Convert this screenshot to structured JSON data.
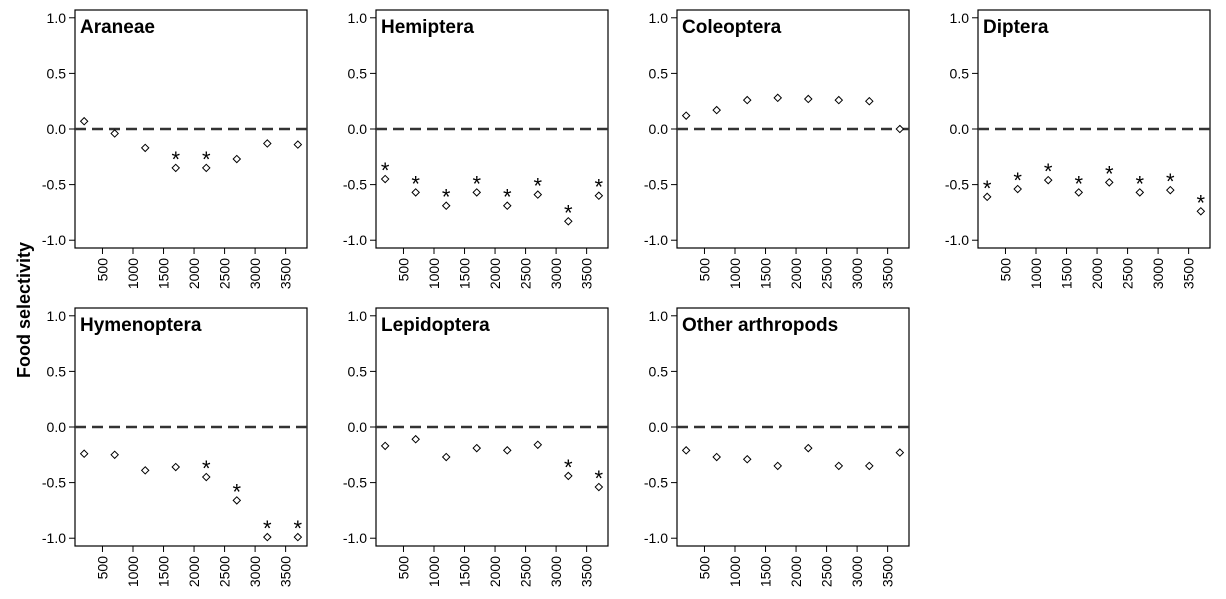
{
  "ylabel": "Food selectivity",
  "chart_data": [
    {
      "type": "scatter",
      "title": "Araneae",
      "x": [
        200,
        700,
        1200,
        1700,
        2200,
        2700,
        3200,
        3700
      ],
      "y": [
        0.07,
        -0.04,
        -0.17,
        -0.35,
        -0.35,
        -0.27,
        -0.13,
        -0.14
      ],
      "significant": [
        false,
        false,
        false,
        true,
        true,
        false,
        false,
        false
      ],
      "ylim": [
        -1.07,
        1.07
      ],
      "xlim": [
        50,
        3850
      ],
      "yticks": [
        "-1.0",
        "-0.5",
        "0.0",
        "0.5",
        "1.0"
      ],
      "xticks": [
        "500",
        "1000",
        "1500",
        "2000",
        "2500",
        "3000",
        "3500"
      ],
      "reference_line": 0
    },
    {
      "type": "scatter",
      "title": "Hemiptera",
      "x": [
        200,
        700,
        1200,
        1700,
        2200,
        2700,
        3200,
        3700
      ],
      "y": [
        -0.45,
        -0.57,
        -0.69,
        -0.57,
        -0.69,
        -0.59,
        -0.83,
        -0.6
      ],
      "significant": [
        true,
        true,
        true,
        true,
        true,
        true,
        true,
        true
      ],
      "ylim": [
        -1.07,
        1.07
      ],
      "xlim": [
        50,
        3850
      ],
      "yticks": [
        "-1.0",
        "-0.5",
        "0.0",
        "0.5",
        "1.0"
      ],
      "xticks": [
        "500",
        "1000",
        "1500",
        "2000",
        "2500",
        "3000",
        "3500"
      ],
      "reference_line": 0
    },
    {
      "type": "scatter",
      "title": "Coleoptera",
      "x": [
        200,
        700,
        1200,
        1700,
        2200,
        2700,
        3200,
        3700
      ],
      "y": [
        0.12,
        0.17,
        0.26,
        0.28,
        0.27,
        0.26,
        0.25,
        0.0
      ],
      "significant": [
        false,
        false,
        false,
        false,
        false,
        false,
        false,
        false
      ],
      "ylim": [
        -1.07,
        1.07
      ],
      "xlim": [
        50,
        3850
      ],
      "yticks": [
        "-1.0",
        "-0.5",
        "0.0",
        "0.5",
        "1.0"
      ],
      "xticks": [
        "500",
        "1000",
        "1500",
        "2000",
        "2500",
        "3000",
        "3500"
      ],
      "reference_line": 0
    },
    {
      "type": "scatter",
      "title": "Diptera",
      "x": [
        200,
        700,
        1200,
        1700,
        2200,
        2700,
        3200,
        3700
      ],
      "y": [
        -0.61,
        -0.54,
        -0.46,
        -0.57,
        -0.48,
        -0.57,
        -0.55,
        -0.74
      ],
      "significant": [
        true,
        true,
        true,
        true,
        true,
        true,
        true,
        true
      ],
      "ylim": [
        -1.07,
        1.07
      ],
      "xlim": [
        50,
        3850
      ],
      "yticks": [
        "-1.0",
        "-0.5",
        "0.0",
        "0.5",
        "1.0"
      ],
      "xticks": [
        "500",
        "1000",
        "1500",
        "2000",
        "2500",
        "3000",
        "3500"
      ],
      "reference_line": 0
    },
    {
      "type": "scatter",
      "title": "Hymenoptera",
      "x": [
        200,
        700,
        1200,
        1700,
        2200,
        2700,
        3200,
        3700
      ],
      "y": [
        -0.24,
        -0.25,
        -0.39,
        -0.36,
        -0.45,
        -0.66,
        -0.99,
        -0.99
      ],
      "significant": [
        false,
        false,
        false,
        false,
        true,
        true,
        true,
        true
      ],
      "ylim": [
        -1.07,
        1.07
      ],
      "xlim": [
        50,
        3850
      ],
      "yticks": [
        "-1.0",
        "-0.5",
        "0.0",
        "0.5",
        "1.0"
      ],
      "xticks": [
        "500",
        "1000",
        "1500",
        "2000",
        "2500",
        "3000",
        "3500"
      ],
      "reference_line": 0
    },
    {
      "type": "scatter",
      "title": "Lepidoptera",
      "x": [
        200,
        700,
        1200,
        1700,
        2200,
        2700,
        3200,
        3700
      ],
      "y": [
        -0.17,
        -0.11,
        -0.27,
        -0.19,
        -0.21,
        -0.16,
        -0.44,
        -0.54
      ],
      "significant": [
        false,
        false,
        false,
        false,
        false,
        false,
        true,
        true
      ],
      "ylim": [
        -1.07,
        1.07
      ],
      "xlim": [
        50,
        3850
      ],
      "yticks": [
        "-1.0",
        "-0.5",
        "0.0",
        "0.5",
        "1.0"
      ],
      "xticks": [
        "500",
        "1000",
        "1500",
        "2000",
        "2500",
        "3000",
        "3500"
      ],
      "reference_line": 0
    },
    {
      "type": "scatter",
      "title": "Other arthropods",
      "x": [
        200,
        700,
        1200,
        1700,
        2200,
        2700,
        3200,
        3700
      ],
      "y": [
        -0.21,
        -0.27,
        -0.29,
        -0.35,
        -0.19,
        -0.35,
        -0.35,
        -0.23
      ],
      "significant": [
        false,
        false,
        false,
        false,
        false,
        false,
        false,
        false
      ],
      "ylim": [
        -1.07,
        1.07
      ],
      "xlim": [
        50,
        3850
      ],
      "yticks": [
        "-1.0",
        "-0.5",
        "0.0",
        "0.5",
        "1.0"
      ],
      "xticks": [
        "500",
        "1000",
        "1500",
        "2000",
        "2500",
        "3000",
        "3500"
      ],
      "reference_line": 0
    }
  ]
}
